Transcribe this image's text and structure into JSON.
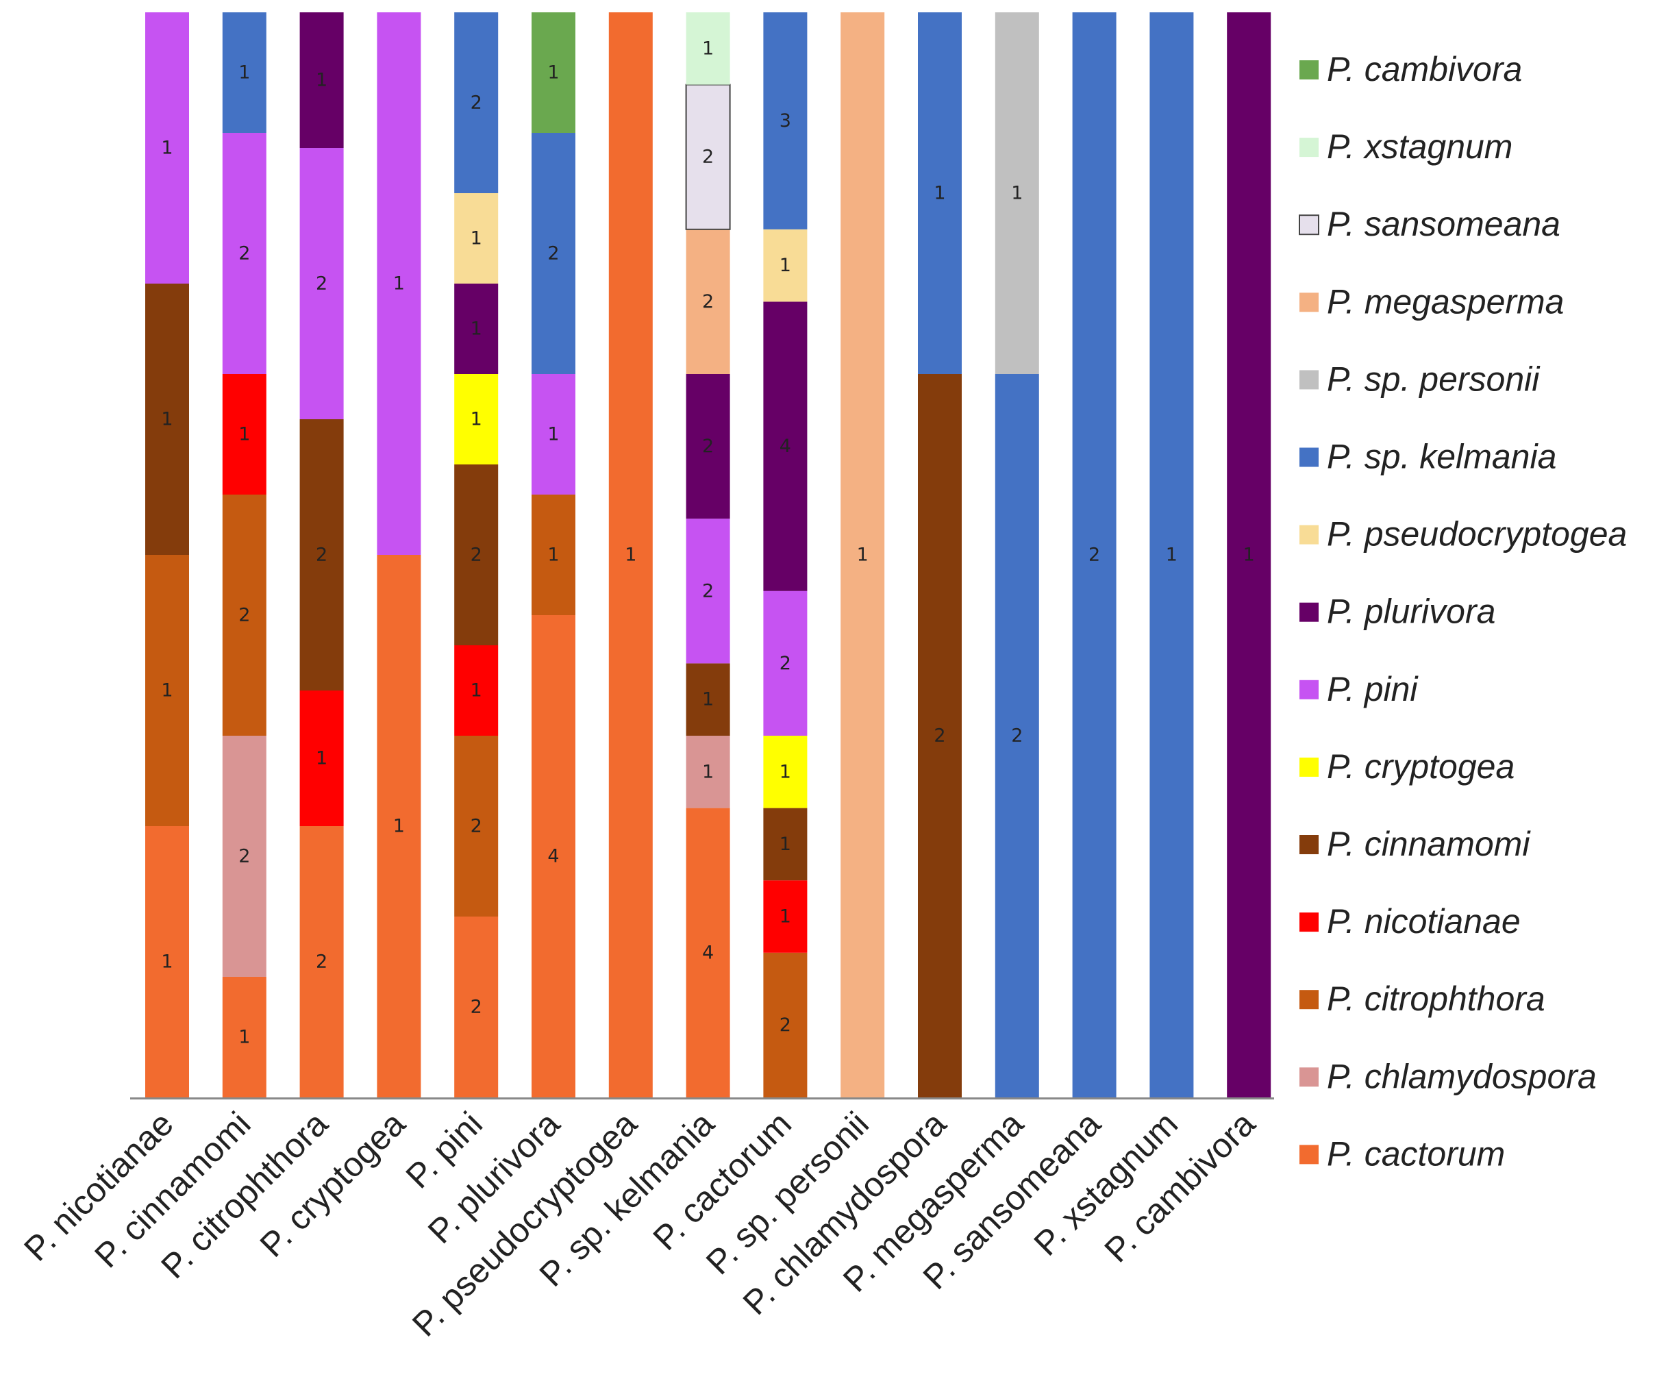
{
  "chart_data": {
    "type": "bar",
    "stacked": true,
    "normalized": true,
    "title": "",
    "xlabel": "",
    "ylabel": "",
    "categories": [
      "P. nicotianae",
      "P. cinnamomi",
      "P. citrophthora",
      "P. cryptogea",
      "P. pini",
      "P. plurivora",
      "P. pseudocryptogea",
      "P. sp. kelmania",
      "P. cactorum",
      "P. sp. personii",
      "P. chlamydospora",
      "P. megasperma",
      "P. sansomeana",
      "P. xstagnum",
      "P. cambivora"
    ],
    "series": [
      {
        "name": "P. cactorum",
        "color": "#F26B2F",
        "values": [
          1,
          1,
          2,
          1,
          2,
          4,
          1,
          4,
          0,
          0,
          0,
          0,
          0,
          0,
          0
        ]
      },
      {
        "name": "P. chlamydospora",
        "color": "#D99594",
        "values": [
          0,
          2,
          0,
          0,
          0,
          0,
          0,
          1,
          0,
          0,
          0,
          0,
          0,
          0,
          0
        ]
      },
      {
        "name": "P. citrophthora",
        "color": "#C55A11",
        "values": [
          1,
          2,
          0,
          0,
          2,
          1,
          0,
          0,
          2,
          0,
          0,
          0,
          0,
          0,
          0
        ]
      },
      {
        "name": "P. nicotianae",
        "color": "#FF0000",
        "values": [
          0,
          1,
          1,
          0,
          1,
          0,
          0,
          0,
          1,
          0,
          0,
          0,
          0,
          0,
          0
        ]
      },
      {
        "name": "P. cinnamomi",
        "color": "#843C0C",
        "values": [
          1,
          0,
          2,
          0,
          2,
          0,
          0,
          1,
          1,
          0,
          2,
          0,
          0,
          0,
          0
        ]
      },
      {
        "name": "P. cryptogea",
        "color": "#FFFF00",
        "values": [
          0,
          0,
          0,
          0,
          1,
          0,
          0,
          0,
          1,
          0,
          0,
          0,
          0,
          0,
          0
        ]
      },
      {
        "name": "P. pini",
        "color": "#C653F2",
        "values": [
          1,
          2,
          2,
          1,
          0,
          1,
          0,
          2,
          2,
          0,
          0,
          0,
          0,
          0,
          0
        ]
      },
      {
        "name": "P. plurivora",
        "color": "#660066",
        "values": [
          0,
          0,
          1,
          0,
          1,
          0,
          0,
          2,
          4,
          0,
          0,
          0,
          0,
          0,
          1
        ]
      },
      {
        "name": "P. pseudocryptogea",
        "color": "#F8DC96",
        "values": [
          0,
          0,
          0,
          0,
          1,
          0,
          0,
          0,
          1,
          0,
          0,
          0,
          0,
          0,
          0
        ]
      },
      {
        "name": "P. sp. kelmania",
        "color": "#4472C4",
        "values": [
          0,
          1,
          0,
          0,
          2,
          2,
          0,
          0,
          3,
          0,
          1,
          2,
          2,
          1,
          0
        ]
      },
      {
        "name": "P. sp. personii",
        "color": "#C0C0C0",
        "values": [
          0,
          0,
          0,
          0,
          0,
          0,
          0,
          0,
          0,
          0,
          0,
          1,
          0,
          0,
          0
        ]
      },
      {
        "name": "P. megasperma",
        "color": "#F4B183",
        "values": [
          0,
          0,
          0,
          0,
          0,
          0,
          0,
          2,
          0,
          1,
          0,
          0,
          0,
          0,
          0
        ]
      },
      {
        "name": "P. sansomeana",
        "color": "#E6E0EC",
        "values": [
          0,
          0,
          0,
          0,
          0,
          0,
          0,
          2,
          0,
          0,
          0,
          0,
          0,
          0,
          0
        ]
      },
      {
        "name": "P. xstagnum",
        "color": "#D5F5D5",
        "values": [
          0,
          0,
          0,
          0,
          0,
          0,
          0,
          1,
          0,
          0,
          0,
          0,
          0,
          0,
          0
        ]
      },
      {
        "name": "P. cambivora",
        "color": "#6AA84F",
        "values": [
          0,
          0,
          0,
          0,
          0,
          1,
          0,
          0,
          0,
          0,
          0,
          0,
          0,
          0,
          0
        ]
      }
    ],
    "legend_order": [
      "P. cambivora",
      "P. xstagnum",
      "P. sansomeana",
      "P. megasperma",
      "P. sp. personii",
      "P. sp. kelmania",
      "P. pseudocryptogea",
      "P. plurivora",
      "P. pini",
      "P. cryptogea",
      "P. cinnamomi",
      "P. nicotianae",
      "P. citrophthora",
      "P. chlamydospora",
      "P. cactorum"
    ],
    "legend_position": "right",
    "outlined_series": [
      "P. sansomeana"
    ],
    "grid": false,
    "ylim": [
      0,
      1
    ]
  }
}
